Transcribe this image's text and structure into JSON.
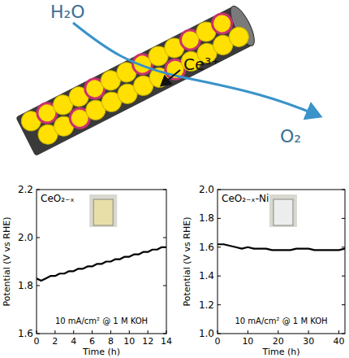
{
  "diagram": {
    "labels": [
      "H₂O",
      "Ce³⁺",
      "O₂"
    ]
  },
  "chart_data": [
    {
      "type": "line",
      "title": "CeO₂₋ₓ",
      "annotation": "10 mA/cm² @ 1 M KOH",
      "x_label": "Time (h)",
      "y_label": "Potential (V vs RHE)",
      "color": "#000000",
      "x": [
        0,
        0.5,
        1,
        1.5,
        2,
        2.5,
        3,
        3.5,
        4,
        4.5,
        5,
        5.5,
        6,
        6.5,
        7,
        7.5,
        8,
        8.5,
        9,
        9.5,
        10,
        10.5,
        11,
        11.5,
        12,
        12.5,
        13,
        13.5,
        14
      ],
      "values": [
        1.83,
        1.82,
        1.83,
        1.84,
        1.84,
        1.85,
        1.85,
        1.86,
        1.86,
        1.87,
        1.87,
        1.88,
        1.88,
        1.89,
        1.89,
        1.9,
        1.9,
        1.91,
        1.91,
        1.92,
        1.92,
        1.93,
        1.93,
        1.94,
        1.94,
        1.95,
        1.95,
        1.96,
        1.96
      ],
      "xlim": [
        0,
        14
      ],
      "xticks": [
        0,
        2,
        4,
        6,
        8,
        10,
        12,
        14
      ],
      "ylim": [
        1.6,
        2.2
      ],
      "yticks": [
        1.6,
        1.8,
        {
          "value": 2,
          "label": "2.0"
        },
        2.2
      ]
    },
    {
      "type": "line",
      "title": "CeO₂₋ₓ-Ni",
      "annotation": "10 mA/cm² @ 1 M KOH",
      "x_label": "Time (h)",
      "y_label": "Potential (V vs RHE)",
      "color": "#000000",
      "x": [
        0,
        2,
        4,
        6,
        8,
        10,
        12,
        14,
        16,
        18,
        20,
        22,
        24,
        26,
        28,
        30,
        32,
        34,
        36,
        38,
        40,
        42
      ],
      "values": [
        1.62,
        1.62,
        1.61,
        1.6,
        1.59,
        1.6,
        1.59,
        1.59,
        1.59,
        1.58,
        1.58,
        1.58,
        1.58,
        1.59,
        1.59,
        1.59,
        1.58,
        1.58,
        1.58,
        1.58,
        1.58,
        1.59
      ],
      "xlim": [
        0,
        42
      ],
      "xticks": [
        0,
        10,
        20,
        30,
        40
      ],
      "ylim": [
        1,
        2
      ],
      "yticks": [
        {
          "value": 1,
          "label": "1.0"
        },
        1.2,
        1.4,
        1.6,
        1.8,
        {
          "value": 2,
          "label": "2.0"
        }
      ]
    }
  ]
}
